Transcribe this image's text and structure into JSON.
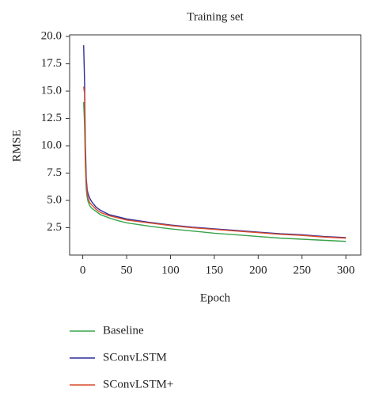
{
  "chart_data": {
    "type": "line",
    "title": "Training set",
    "x_label": "Epoch",
    "y_label": "RMSE",
    "x": [
      1,
      2,
      3,
      4,
      5,
      6,
      8,
      10,
      15,
      20,
      30,
      40,
      50,
      75,
      100,
      125,
      150,
      175,
      200,
      225,
      250,
      275,
      300
    ],
    "series": [
      {
        "name": "Baseline",
        "color": "#3aa34a",
        "values": [
          14,
          12,
          8,
          6,
          5.3,
          4.9,
          4.5,
          4.3,
          4.0,
          3.7,
          3.4,
          3.15,
          2.95,
          2.65,
          2.4,
          2.2,
          2.0,
          1.85,
          1.7,
          1.55,
          1.45,
          1.35,
          1.25
        ]
      },
      {
        "name": "SConvLSTM",
        "color": "#2b2b9c",
        "values": [
          19.2,
          16,
          10,
          7,
          6,
          5.6,
          5.2,
          4.9,
          4.4,
          4.1,
          3.7,
          3.5,
          3.3,
          3.0,
          2.75,
          2.55,
          2.4,
          2.25,
          2.1,
          1.95,
          1.85,
          1.7,
          1.6
        ]
      },
      {
        "name": "SConvLSTM+",
        "color": "#d94a2a",
        "values": [
          15.4,
          14.8,
          9,
          6.5,
          5.6,
          5.2,
          4.8,
          4.6,
          4.2,
          3.9,
          3.6,
          3.4,
          3.2,
          2.95,
          2.7,
          2.5,
          2.35,
          2.2,
          2.05,
          1.9,
          1.8,
          1.65,
          1.55
        ]
      }
    ],
    "xlim": [
      -15,
      317
    ],
    "ylim": [
      0,
      20.15
    ],
    "xticks": [
      0,
      50,
      100,
      150,
      200,
      250,
      300
    ],
    "yticks": [
      2.5,
      {
        "value": 5,
        "label": "5.0"
      },
      7.5,
      {
        "value": 10,
        "label": "10.0"
      },
      12.5,
      {
        "value": 15,
        "label": "15.0"
      },
      17.5,
      {
        "value": 20,
        "label": "20.0"
      }
    ],
    "grid": false,
    "legend": "below"
  }
}
